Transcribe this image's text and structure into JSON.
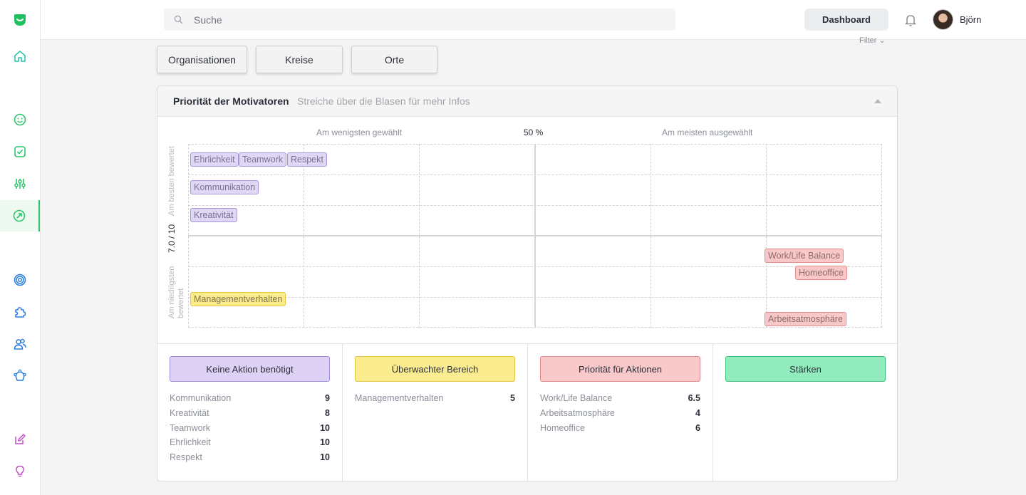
{
  "sidebar": {
    "items": [
      {
        "icon": "home-icon"
      },
      {
        "icon": "smiley-icon"
      },
      {
        "icon": "checkbox-icon"
      },
      {
        "icon": "sliders-icon"
      },
      {
        "icon": "trend-icon",
        "active": true
      },
      {
        "icon": "target-icon"
      },
      {
        "icon": "puzzle-icon"
      },
      {
        "icon": "users-icon"
      },
      {
        "icon": "network-icon"
      },
      {
        "icon": "edit-icon"
      },
      {
        "icon": "lightbulb-icon"
      }
    ],
    "accent": "#2cc76b"
  },
  "header": {
    "search_placeholder": "Suche",
    "dashboard_label": "Dashboard",
    "user_name": "Björn",
    "filter_label": "Filter"
  },
  "filters": [
    "Organisationen",
    "Kreise",
    "Orte"
  ],
  "card": {
    "title": "Priorität der Motivatoren",
    "subtitle": "Streiche über die Blasen für mehr Infos"
  },
  "chart_data": {
    "type": "scatter",
    "x_left_label": "Am wenigsten gewählt",
    "x_mid_label": "50 %",
    "x_right_label": "Am meisten ausgewählt",
    "y_top_label": "Am besten bewertet",
    "y_mid_label": "7.0 / 10",
    "y_bottom_label": "Am niedrigsten bewertet",
    "bubbles": [
      {
        "label": "Ehrlichkeit",
        "group": "purple"
      },
      {
        "label": "Teamwork",
        "group": "purple"
      },
      {
        "label": "Respekt",
        "group": "purple"
      },
      {
        "label": "Kommunikation",
        "group": "purple"
      },
      {
        "label": "Kreativität",
        "group": "purple"
      },
      {
        "label": "Work/Life Balance",
        "group": "red"
      },
      {
        "label": "Homeoffice",
        "group": "red"
      },
      {
        "label": "Managementverhalten",
        "group": "yellow"
      },
      {
        "label": "Arbeitsatmosphäre",
        "group": "red"
      }
    ]
  },
  "categories": [
    {
      "label": "Keine Aktion benötigt",
      "color": "#ddd1f6",
      "items": [
        {
          "name": "Kommunikation",
          "value": "9"
        },
        {
          "name": "Kreativität",
          "value": "8"
        },
        {
          "name": "Teamwork",
          "value": "10"
        },
        {
          "name": "Ehrlichkeit",
          "value": "10"
        },
        {
          "name": "Respekt",
          "value": "10"
        }
      ]
    },
    {
      "label": "Überwachter Bereich",
      "color": "#fbec8f",
      "items": [
        {
          "name": "Managementverhalten",
          "value": "5"
        }
      ]
    },
    {
      "label": "Priorität für Aktionen",
      "color": "#f9c8c8",
      "items": [
        {
          "name": "Work/Life Balance",
          "value": "6.5"
        },
        {
          "name": "Arbeitsatmosphäre",
          "value": "4"
        },
        {
          "name": "Homeoffice",
          "value": "6"
        }
      ]
    },
    {
      "label": "Stärken",
      "color": "#92ebbd",
      "items": []
    }
  ]
}
